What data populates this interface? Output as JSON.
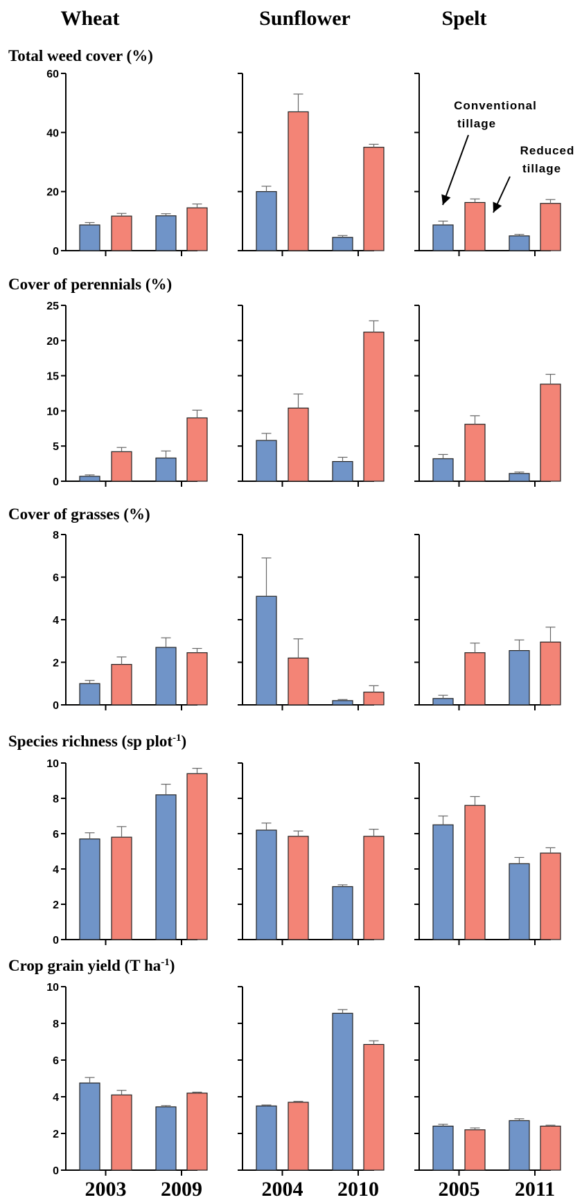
{
  "colors": {
    "conventional": "#7094C8",
    "reduced": "#F38476",
    "axis": "#000000",
    "error": "#666666"
  },
  "columns": [
    {
      "title": "Wheat",
      "years": [
        "2003",
        "2009"
      ]
    },
    {
      "title": "Sunflower",
      "years": [
        "2004",
        "2010"
      ]
    },
    {
      "title": "Spelt",
      "years": [
        "2005",
        "2011"
      ]
    }
  ],
  "rows": [
    {
      "label": "Total weed cover (%)",
      "ymax": 60,
      "ticks": [
        "0",
        "20",
        "40",
        "60"
      ]
    },
    {
      "label": "Cover of perennials (%)",
      "ymax": 25,
      "ticks": [
        "0",
        "5",
        "10",
        "15",
        "20",
        "25"
      ]
    },
    {
      "label": "Cover of grasses (%)",
      "ymax": 8,
      "ticks": [
        "0",
        "2",
        "4",
        "6",
        "8"
      ]
    },
    {
      "label": "Species richness (sp plot",
      "label_sup": "-1",
      "label_end": ")",
      "ymax": 10,
      "ticks": [
        "0",
        "2",
        "4",
        "6",
        "8",
        "10"
      ]
    },
    {
      "label": "Crop grain yield (T ha",
      "label_sup": "-1",
      "label_end": ")",
      "ymax": 10,
      "ticks": [
        "0",
        "2",
        "4",
        "6",
        "8",
        "10"
      ]
    }
  ],
  "annotations": {
    "conventional": [
      "Conventional",
      "tillage"
    ],
    "reduced": [
      "Reduced",
      "tillage"
    ]
  },
  "chart_data": [
    {
      "type": "bar",
      "ylabel": "Total weed cover (%)",
      "ylim": [
        0,
        60
      ],
      "categories": [
        "2003",
        "2009"
      ],
      "series": [
        {
          "name": "Conventional tillage",
          "values": [
            8.7,
            11.8
          ],
          "errors": [
            0.8,
            0.7
          ]
        },
        {
          "name": "Reduced tillage",
          "values": [
            11.7,
            14.5
          ],
          "errors": [
            0.9,
            1.3
          ]
        }
      ]
    },
    {
      "type": "bar",
      "ylabel": "Total weed cover (%)",
      "ylim": [
        0,
        60
      ],
      "categories": [
        "2004",
        "2010"
      ],
      "series": [
        {
          "name": "Conventional tillage",
          "values": [
            20,
            4.5
          ],
          "errors": [
            1.8,
            0.6
          ]
        },
        {
          "name": "Reduced tillage",
          "values": [
            47,
            35
          ],
          "errors": [
            6,
            1
          ]
        }
      ]
    },
    {
      "type": "bar",
      "ylabel": "Total weed cover (%)",
      "ylim": [
        0,
        60
      ],
      "categories": [
        "2005",
        "2011"
      ],
      "series": [
        {
          "name": "Conventional tillage",
          "values": [
            8.7,
            5
          ],
          "errors": [
            1.3,
            0.5
          ]
        },
        {
          "name": "Reduced tillage",
          "values": [
            16.3,
            16
          ],
          "errors": [
            1.2,
            1.3
          ]
        }
      ]
    },
    {
      "type": "bar",
      "ylabel": "Cover of perennials (%)",
      "ylim": [
        0,
        25
      ],
      "categories": [
        "2003",
        "2009"
      ],
      "series": [
        {
          "name": "Conventional tillage",
          "values": [
            0.7,
            3.3
          ],
          "errors": [
            0.2,
            1
          ]
        },
        {
          "name": "Reduced tillage",
          "values": [
            4.2,
            9
          ],
          "errors": [
            0.6,
            1.1
          ]
        }
      ]
    },
    {
      "type": "bar",
      "ylabel": "Cover of perennials (%)",
      "ylim": [
        0,
        25
      ],
      "categories": [
        "2004",
        "2010"
      ],
      "series": [
        {
          "name": "Conventional tillage",
          "values": [
            5.8,
            2.8
          ],
          "errors": [
            1,
            0.6
          ]
        },
        {
          "name": "Reduced tillage",
          "values": [
            10.4,
            21.2
          ],
          "errors": [
            2,
            1.6
          ]
        }
      ]
    },
    {
      "type": "bar",
      "ylabel": "Cover of perennials (%)",
      "ylim": [
        0,
        25
      ],
      "categories": [
        "2005",
        "2011"
      ],
      "series": [
        {
          "name": "Conventional tillage",
          "values": [
            3.2,
            1.1
          ],
          "errors": [
            0.6,
            0.2
          ]
        },
        {
          "name": "Reduced tillage",
          "values": [
            8.1,
            13.8
          ],
          "errors": [
            1.2,
            1.4
          ]
        }
      ]
    },
    {
      "type": "bar",
      "ylabel": "Cover of grasses (%)",
      "ylim": [
        0,
        8
      ],
      "categories": [
        "2003",
        "2009"
      ],
      "series": [
        {
          "name": "Conventional tillage",
          "values": [
            1,
            2.7
          ],
          "errors": [
            0.15,
            0.45
          ]
        },
        {
          "name": "Reduced tillage",
          "values": [
            1.9,
            2.45
          ],
          "errors": [
            0.35,
            0.2
          ]
        }
      ]
    },
    {
      "type": "bar",
      "ylabel": "Cover of grasses (%)",
      "ylim": [
        0,
        8
      ],
      "categories": [
        "2004",
        "2010"
      ],
      "series": [
        {
          "name": "Conventional tillage",
          "values": [
            5.1,
            0.2
          ],
          "errors": [
            1.8,
            0.05
          ]
        },
        {
          "name": "Reduced tillage",
          "values": [
            2.2,
            0.6
          ],
          "errors": [
            0.9,
            0.3
          ]
        }
      ]
    },
    {
      "type": "bar",
      "ylabel": "Cover of grasses (%)",
      "ylim": [
        0,
        8
      ],
      "categories": [
        "2005",
        "2011"
      ],
      "series": [
        {
          "name": "Conventional tillage",
          "values": [
            0.3,
            2.55
          ],
          "errors": [
            0.15,
            0.5
          ]
        },
        {
          "name": "Reduced tillage",
          "values": [
            2.45,
            2.95
          ],
          "errors": [
            0.45,
            0.7
          ]
        }
      ]
    },
    {
      "type": "bar",
      "ylabel": "Species richness (sp plot-1)",
      "ylim": [
        0,
        10
      ],
      "categories": [
        "2003",
        "2009"
      ],
      "series": [
        {
          "name": "Conventional tillage",
          "values": [
            5.7,
            8.2
          ],
          "errors": [
            0.35,
            0.6
          ]
        },
        {
          "name": "Reduced tillage",
          "values": [
            5.8,
            9.4
          ],
          "errors": [
            0.6,
            0.3
          ]
        }
      ]
    },
    {
      "type": "bar",
      "ylabel": "Species richness (sp plot-1)",
      "ylim": [
        0,
        10
      ],
      "categories": [
        "2004",
        "2010"
      ],
      "series": [
        {
          "name": "Conventional tillage",
          "values": [
            6.2,
            3
          ],
          "errors": [
            0.4,
            0.1
          ]
        },
        {
          "name": "Reduced tillage",
          "values": [
            5.85,
            5.85
          ],
          "errors": [
            0.3,
            0.4
          ]
        }
      ]
    },
    {
      "type": "bar",
      "ylabel": "Species richness (sp plot-1)",
      "ylim": [
        0,
        10
      ],
      "categories": [
        "2005",
        "2011"
      ],
      "series": [
        {
          "name": "Conventional tillage",
          "values": [
            6.5,
            4.3
          ],
          "errors": [
            0.5,
            0.35
          ]
        },
        {
          "name": "Reduced tillage",
          "values": [
            7.6,
            4.9
          ],
          "errors": [
            0.5,
            0.3
          ]
        }
      ]
    },
    {
      "type": "bar",
      "ylabel": "Crop grain yield (T ha-1)",
      "ylim": [
        0,
        10
      ],
      "categories": [
        "2003",
        "2009"
      ],
      "series": [
        {
          "name": "Conventional tillage",
          "values": [
            4.75,
            3.45
          ],
          "errors": [
            0.3,
            0.07
          ]
        },
        {
          "name": "Reduced tillage",
          "values": [
            4.1,
            4.2
          ],
          "errors": [
            0.25,
            0.05
          ]
        }
      ]
    },
    {
      "type": "bar",
      "ylabel": "Crop grain yield (T ha-1)",
      "ylim": [
        0,
        10
      ],
      "categories": [
        "2004",
        "2010"
      ],
      "series": [
        {
          "name": "Conventional tillage",
          "values": [
            3.5,
            8.55
          ],
          "errors": [
            0.05,
            0.2
          ]
        },
        {
          "name": "Reduced tillage",
          "values": [
            3.7,
            6.85
          ],
          "errors": [
            0.05,
            0.2
          ]
        }
      ]
    },
    {
      "type": "bar",
      "ylabel": "Crop grain yield (T ha-1)",
      "ylim": [
        0,
        10
      ],
      "categories": [
        "2005",
        "2011"
      ],
      "series": [
        {
          "name": "Conventional tillage",
          "values": [
            2.4,
            2.7
          ],
          "errors": [
            0.1,
            0.1
          ]
        },
        {
          "name": "Reduced tillage",
          "values": [
            2.2,
            2.4
          ],
          "errors": [
            0.1,
            0.05
          ]
        }
      ]
    }
  ]
}
